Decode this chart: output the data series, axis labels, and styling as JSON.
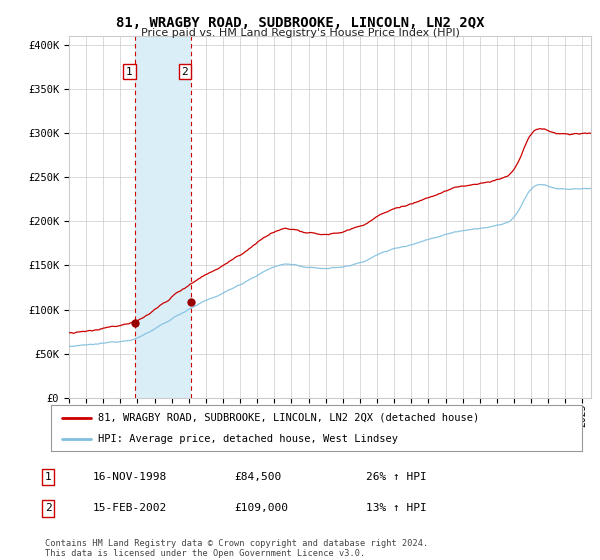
{
  "title": "81, WRAGBY ROAD, SUDBROOKE, LINCOLN, LN2 2QX",
  "subtitle": "Price paid vs. HM Land Registry's House Price Index (HPI)",
  "ylabel_ticks": [
    "£0",
    "£50K",
    "£100K",
    "£150K",
    "£200K",
    "£250K",
    "£300K",
    "£350K",
    "£400K"
  ],
  "ytick_vals": [
    0,
    50000,
    100000,
    150000,
    200000,
    250000,
    300000,
    350000,
    400000
  ],
  "ylim": [
    0,
    410000
  ],
  "xlim_start": 1995.0,
  "xlim_end": 2025.5,
  "sale1_date": 1998.88,
  "sale1_price": 84500,
  "sale2_date": 2002.12,
  "sale2_price": 109000,
  "legend_line1": "81, WRAGBY ROAD, SUDBROOKE, LINCOLN, LN2 2QX (detached house)",
  "legend_line2": "HPI: Average price, detached house, West Lindsey",
  "table_row1": [
    "1",
    "16-NOV-1998",
    "£84,500",
    "26% ↑ HPI"
  ],
  "table_row2": [
    "2",
    "15-FEB-2002",
    "£109,000",
    "13% ↑ HPI"
  ],
  "footnote": "Contains HM Land Registry data © Crown copyright and database right 2024.\nThis data is licensed under the Open Government Licence v3.0.",
  "hpi_color": "#7fbfdf",
  "price_color": "#cc0000",
  "sale_dot_color": "#990000",
  "vline_color": "#cc0000",
  "highlight_color": "#daeef8",
  "grid_color": "#cccccc",
  "background_color": "#ffffff"
}
